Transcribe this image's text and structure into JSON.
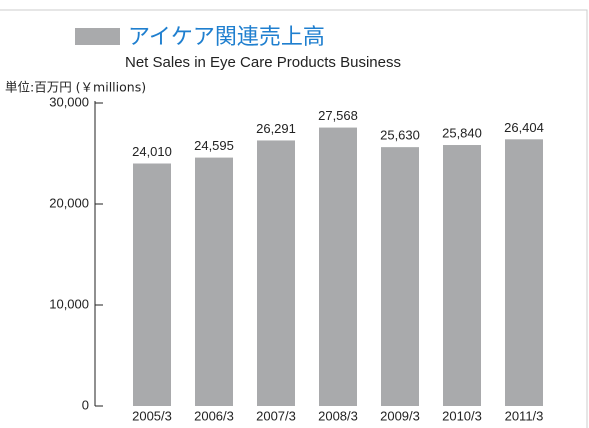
{
  "chart_data": {
    "type": "bar",
    "title": "アイケア関連売上高",
    "subtitle": "Net Sales in Eye Care Products Business",
    "unit_label": "単位:百万円 (￥millions)",
    "categories": [
      "2005/3",
      "2006/3",
      "2007/3",
      "2008/3",
      "2009/3",
      "2010/3",
      "2011/3"
    ],
    "values": [
      24010,
      24595,
      26291,
      27568,
      25630,
      25840,
      26404
    ],
    "value_labels": [
      "24,010",
      "24,595",
      "26,291",
      "27,568",
      "25,630",
      "25,840",
      "26,404"
    ],
    "color": "#a9aaac",
    "ylim": [
      0,
      30000
    ],
    "yticks": [
      0,
      {
        "value": 10000,
        "label": "10,000"
      },
      {
        "value": 20000,
        "label": "20,000"
      },
      {
        "value": 30000,
        "label": "30,000"
      }
    ]
  }
}
